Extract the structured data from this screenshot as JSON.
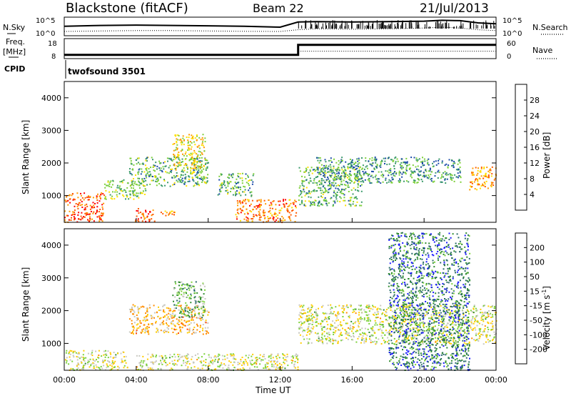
{
  "header": {
    "radar": "Blackstone (fitACF)",
    "beam": "Beam 22",
    "date": "21/Jul/2013"
  },
  "top_panel": {
    "left_label": "N.Sky",
    "right_label": "N.Search",
    "left_ticks": [
      "10^5",
      "10^0"
    ],
    "right_ticks": [
      "10^5",
      "10^0"
    ]
  },
  "freq_panel": {
    "label_line1": "Freq.",
    "label_line2": "[MHz]",
    "left_ticks": [
      "18",
      "8"
    ],
    "right_label": "Nave",
    "right_ticks": [
      "60",
      "0"
    ]
  },
  "cpid": {
    "label": "CPID",
    "value": "twofsound 3501"
  },
  "axes": {
    "ylabel": "Slant Range [km]",
    "xlabel": "Time UT",
    "y_ticks": [
      "4000",
      "3000",
      "2000",
      "1000"
    ],
    "x_ticks": [
      "00:00",
      "04:00",
      "08:00",
      "12:00",
      "16:00",
      "20:00",
      "00:00"
    ]
  },
  "power_scale": {
    "label": "Power [dB]",
    "ticks": [
      "28",
      "24",
      "20",
      "16",
      "12",
      "8",
      "4"
    ],
    "colors": [
      "#ff0000",
      "#ff5a00",
      "#ff9a00",
      "#ffe000",
      "#7dd03a",
      "#3a9a6a",
      "#1a4aa8",
      "#0000ff"
    ]
  },
  "velocity_scale": {
    "label": "Velocity [m s",
    "label_sup": "-1",
    "label_end": "]",
    "ticks": [
      "200",
      "100",
      "50",
      "15",
      "-15",
      "-50",
      "-100",
      "-200"
    ],
    "colors": [
      "#1a1aff",
      "#2a6a6a",
      "#2e8b2e",
      "#7cd23a",
      "#c8c8c0",
      "#ffcc00",
      "#ff8c00",
      "#ff4500",
      "#ff0000"
    ]
  },
  "chart_data": [
    {
      "type": "heatmap",
      "title": "Power",
      "xlabel": "Time UT",
      "ylabel": "Slant Range [km]",
      "xlim": [
        0,
        24
      ],
      "ylim": [
        180,
        4500
      ],
      "colorbar": {
        "label": "Power [dB]",
        "range": [
          0,
          32
        ]
      },
      "regions": [
        {
          "t": [
            0.0,
            2.2
          ],
          "r": [
            200,
            1100
          ],
          "level": 26
        },
        {
          "t": [
            2.2,
            4.5
          ],
          "r": [
            900,
            1500
          ],
          "level": 14
        },
        {
          "t": [
            3.6,
            8.0
          ],
          "r": [
            1300,
            2200
          ],
          "level": 12
        },
        {
          "t": [
            3.9,
            5.0
          ],
          "r": [
            200,
            650
          ],
          "level": 27
        },
        {
          "t": [
            5.0,
            6.2
          ],
          "r": [
            400,
            550
          ],
          "level": 22
        },
        {
          "t": [
            6.0,
            7.8
          ],
          "r": [
            1800,
            2900
          ],
          "level": 18
        },
        {
          "t": [
            8.5,
            10.5
          ],
          "r": [
            1000,
            1700
          ],
          "level": 12
        },
        {
          "t": [
            9.5,
            12.9
          ],
          "r": [
            200,
            900
          ],
          "level": 24
        },
        {
          "t": [
            13.0,
            16.5
          ],
          "r": [
            700,
            1900
          ],
          "level": 12
        },
        {
          "t": [
            14.0,
            22.0
          ],
          "r": [
            1400,
            2200
          ],
          "level": 10
        },
        {
          "t": [
            22.5,
            24.0
          ],
          "r": [
            1200,
            1900
          ],
          "level": 22
        }
      ]
    },
    {
      "type": "heatmap",
      "title": "Velocity",
      "xlabel": "Time UT",
      "ylabel": "Slant Range [km]",
      "xlim": [
        0,
        24
      ],
      "ylim": [
        180,
        4500
      ],
      "colorbar": {
        "label": "Velocity [m s-1]",
        "range": [
          -250,
          250
        ]
      },
      "regions": [
        {
          "t": [
            0.0,
            3.5
          ],
          "r": [
            200,
            800
          ],
          "level": 0
        },
        {
          "t": [
            4.0,
            13.0
          ],
          "r": [
            200,
            700
          ],
          "level": 0
        },
        {
          "t": [
            3.6,
            8.0
          ],
          "r": [
            1300,
            2200
          ],
          "level": -60
        },
        {
          "t": [
            6.0,
            7.8
          ],
          "r": [
            1800,
            2900
          ],
          "level": 80
        },
        {
          "t": [
            13.0,
            24.0
          ],
          "r": [
            1000,
            2200
          ],
          "level": 0
        },
        {
          "t": [
            18.0,
            22.5
          ],
          "r": [
            200,
            4400
          ],
          "level": 150
        }
      ]
    },
    {
      "type": "line",
      "title": "N.Sky / N.Search",
      "x": [
        0,
        2,
        4,
        6,
        8,
        10,
        12,
        13,
        14,
        16,
        18,
        20,
        21,
        22,
        23,
        24
      ],
      "series": [
        {
          "name": "N.Sky",
          "values": [
            0.55,
            0.6,
            0.62,
            0.6,
            0.58,
            0.55,
            0.5,
            0.8,
            0.82,
            0.8,
            0.82,
            0.85,
            0.9,
            0.88,
            0.75,
            0.7
          ]
        },
        {
          "name": "N.Search",
          "values": [
            0.25,
            0.28,
            0.3,
            0.3,
            0.28,
            0.26,
            0.25,
            0.35,
            0.4,
            0.38,
            0.4,
            0.45,
            0.5,
            0.45,
            0.35,
            0.3
          ]
        }
      ]
    },
    {
      "type": "line",
      "title": "Freq. / Nave",
      "x": [
        0,
        13,
        13,
        24
      ],
      "series": [
        {
          "name": "Freq.",
          "values": [
            10.2,
            10.2,
            16.0,
            16.0
          ]
        },
        {
          "name": "Nave",
          "values": [
            14,
            14,
            26,
            26
          ]
        }
      ]
    }
  ]
}
